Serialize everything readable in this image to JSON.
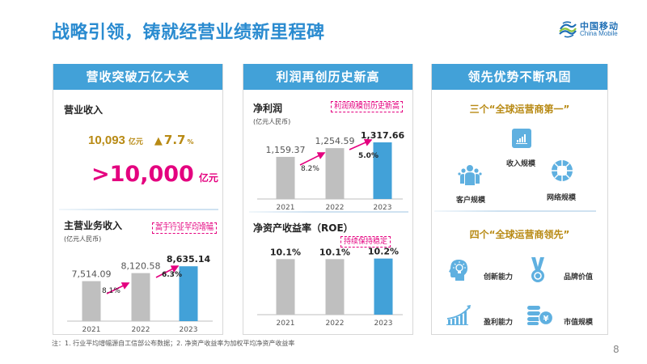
{
  "page": {
    "title": "战略引领，铸就经营业绩新里程碑",
    "page_number": "8",
    "footnote": "注：1. 行业平均增幅源自工信部公布数据；2. 净资产收益率为加权平均净资产收益率"
  },
  "logo": {
    "icon": "china-mobile-logo-icon",
    "name_cn": "中国移动",
    "name_en": "China Mobile",
    "colors": {
      "blue": "#1f6fb5",
      "green": "#8dc63f"
    }
  },
  "colors": {
    "header_blue": "#42a1d8",
    "title_blue": "#2a8bd0",
    "gold": "#b88a14",
    "pink": "#e4007f",
    "bar_grey": "#bfbfbf",
    "bar_blue": "#42a1d8"
  },
  "panel1": {
    "header": "营收突破万亿大关",
    "revenue": {
      "label": "营业收入",
      "value": "10,093",
      "unit": "亿元",
      "growth_icon": "triangle-up-icon",
      "growth_value": "7.7",
      "growth_unit": "%",
      "milestone": ">10,000",
      "milestone_unit": "亿元"
    },
    "main_revenue": {
      "label": "主营业务收入",
      "unit_note": "(亿元人民币)",
      "tag": "高于行业平均增幅"
    }
  },
  "panel2": {
    "header": "利润再创历史新高",
    "net_profit": {
      "label": "净利润",
      "unit_note": "(亿元人民币)",
      "tag": "利润规模创历史新高"
    },
    "roe": {
      "label": "净资产收益率（ROE）",
      "tag": "持续保持稳定"
    }
  },
  "panel3": {
    "header": "领先优势不断巩固",
    "section1": {
      "heading": "三个“全球运营商第一”",
      "items": [
        {
          "label": "收入规模",
          "icon": "bar-chart-icon"
        },
        {
          "label": "客户规模",
          "icon": "people-group-icon"
        },
        {
          "label": "网络规模",
          "icon": "network-globe-icon"
        }
      ]
    },
    "section2": {
      "heading": "四个“全球运营商领先”",
      "items": [
        {
          "label": "创新能力",
          "icon": "lightbulb-head-icon"
        },
        {
          "label": "品牌价值",
          "icon": "medal-icon"
        },
        {
          "label": "盈利能力",
          "icon": "growth-chart-icon"
        },
        {
          "label": "市值规模",
          "icon": "coins-yuan-icon"
        }
      ]
    }
  },
  "chart_data": [
    {
      "id": "main_revenue",
      "type": "bar",
      "title": "主营业务收入",
      "ylabel": "亿元人民币",
      "categories": [
        "2021",
        "2022",
        "2023"
      ],
      "values": [
        7514.09,
        8120.58,
        8635.14
      ],
      "value_labels": [
        "7,514.09",
        "8,120.58",
        "8,635.14"
      ],
      "growth_labels": [
        "8.1%",
        "6.3%"
      ],
      "highlight_index": 2,
      "ylim": [
        4500,
        9500
      ]
    },
    {
      "id": "net_profit",
      "type": "bar",
      "title": "净利润",
      "ylabel": "亿元人民币",
      "categories": [
        "2021",
        "2022",
        "2023"
      ],
      "values": [
        1159.37,
        1254.59,
        1317.66
      ],
      "value_labels": [
        "1,159.37",
        "1,254.59",
        "1,317.66"
      ],
      "growth_labels": [
        "8.2%",
        "5.0%"
      ],
      "highlight_index": 2,
      "ylim": [
        700,
        1450
      ]
    },
    {
      "id": "roe",
      "type": "bar",
      "title": "净资产收益率（ROE）",
      "categories": [
        "2021",
        "2022",
        "2023"
      ],
      "values": [
        10.1,
        10.1,
        10.2
      ],
      "value_labels": [
        "10.1%",
        "10.1%",
        "10.2%"
      ],
      "growth_labels": [],
      "highlight_index": 2,
      "ylim": [
        0,
        12.5
      ]
    }
  ]
}
